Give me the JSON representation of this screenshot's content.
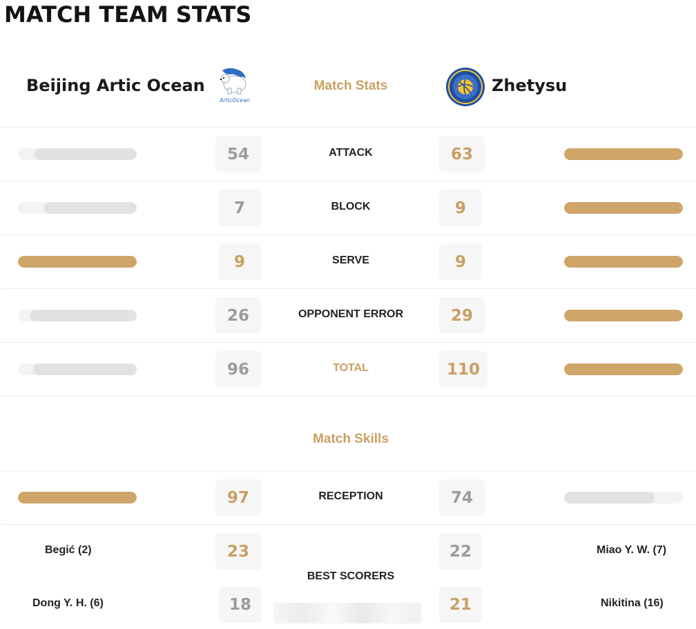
{
  "page_title": "MATCH TEAM STATS",
  "home_team": {
    "name": "Beijing Artic Ocean",
    "logo_icon": "polar-bear-logo-icon",
    "logo_text": "ArticOcean"
  },
  "away_team": {
    "name": "Zhetysu",
    "logo_icon": "volleyball-club-crest-icon"
  },
  "colors": {
    "accent": "#c9a063",
    "bar_gold": "#cfa56a",
    "bar_grey": "#e2e2e2",
    "number_grey": "#9c9c9c"
  },
  "match_stats_title": "Match Stats",
  "stats": [
    {
      "label": "ATTACK",
      "home": "54",
      "away": "63",
      "home_share": 0.86,
      "away_share": 1.0
    },
    {
      "label": "BLOCK",
      "home": "7",
      "away": "9",
      "home_share": 0.78,
      "away_share": 1.0
    },
    {
      "label": "SERVE",
      "home": "9",
      "away": "9",
      "home_share": 1.0,
      "away_share": 1.0
    },
    {
      "label": "OPPONENT ERROR",
      "home": "26",
      "away": "29",
      "home_share": 0.9,
      "away_share": 1.0
    },
    {
      "label": "TOTAL",
      "home": "96",
      "away": "110",
      "home_share": 0.87,
      "away_share": 1.0
    }
  ],
  "match_skills_title": "Match Skills",
  "skills": [
    {
      "label": "RECEPTION",
      "home": "97",
      "away": "74",
      "home_share": 1.0,
      "away_share": 0.76
    }
  ],
  "best_scorers": {
    "label": "BEST SCORERS",
    "rows": [
      {
        "home_player": "Begić (2)",
        "home": "23",
        "away": "22",
        "away_player": "Miao Y. W. (7)"
      },
      {
        "home_player": "Dong Y. H. (6)",
        "home": "18",
        "away": "21",
        "away_player": "Nikitina (16)"
      }
    ]
  }
}
